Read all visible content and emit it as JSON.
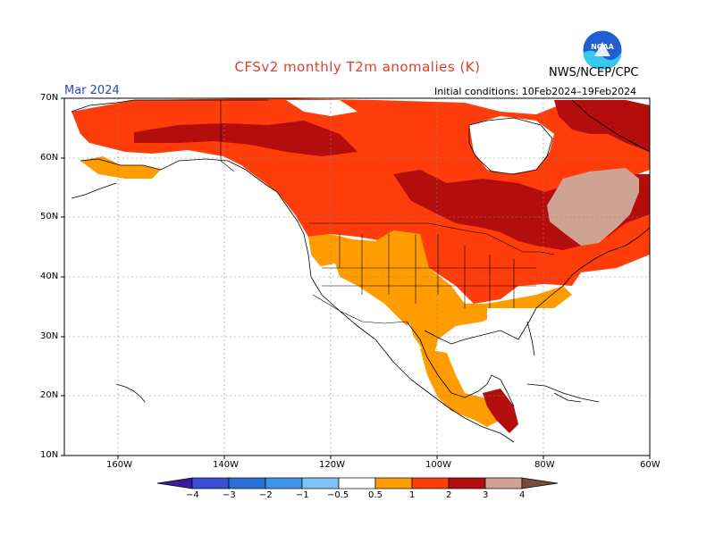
{
  "title": "CFSv2 monthly T2m anomalies (K)",
  "credit": "NWS/NCEP/CPC",
  "valid_month": "Mar 2024",
  "initial_conditions": "Initial conditions: 10Feb2024–19Feb2024",
  "logo_text": "NOAA",
  "lat_labels": [
    "70N",
    "60N",
    "50N",
    "40N",
    "30N",
    "20N",
    "10N"
  ],
  "lon_labels": [
    "160W",
    "140W",
    "120W",
    "100W",
    "80W",
    "60W"
  ],
  "colorbar": {
    "labels": [
      "−4",
      "−3",
      "−2",
      "−1",
      "−0.5",
      "0.5",
      "1",
      "2",
      "3",
      "4"
    ],
    "colors": [
      "#3a1d9e",
      "#2a4fd1",
      "#3a7ee0",
      "#4fa3ef",
      "#86c6f6",
      "#ffffff",
      "#ff9d00",
      "#ff3d0a",
      "#b40d0d",
      "#cfa393",
      "#7a4b3a"
    ]
  },
  "map_colors": {
    "land": "#ffffff",
    "a05": "#ff9d00",
    "a1": "#ff3d0a",
    "a2": "#b40d0d",
    "a3": "#cfa393"
  }
}
